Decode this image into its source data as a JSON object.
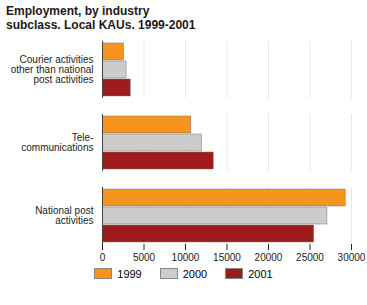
{
  "chart_data": {
    "type": "bar",
    "orientation": "horizontal",
    "title": "Employment, by industry subclass. Local KAUs. 1999-2001",
    "categories": [
      "Courier activities\nother than national\npost activities",
      "Tele-\ncommunications",
      "National post\nactivities"
    ],
    "series": [
      {
        "name": "1999",
        "color": "#f7941d",
        "values": [
          2600,
          10700,
          29300
        ]
      },
      {
        "name": "2000",
        "color": "#cccccc",
        "values": [
          2900,
          12000,
          27100
        ]
      },
      {
        "name": "2001",
        "color": "#9e1b1b",
        "values": [
          3400,
          13400,
          25500
        ]
      }
    ],
    "xlim": [
      0,
      30000
    ],
    "xticks": [
      0,
      5000,
      10000,
      15000,
      20000,
      25000,
      30000
    ],
    "grid": true,
    "legend": "bottom"
  }
}
